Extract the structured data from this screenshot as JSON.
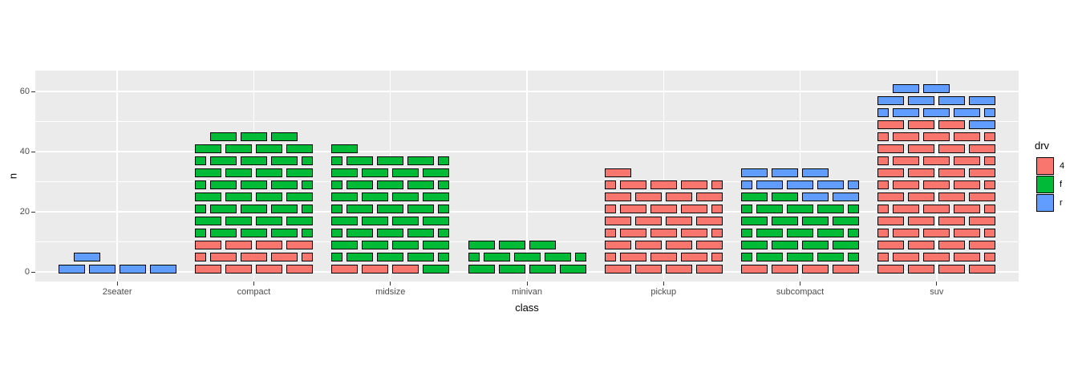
{
  "figure": {
    "background": "#FFFFFF",
    "panel_background": "#EBEBEB",
    "gridline_color": "#FFFFFF",
    "tick_color": "#333333",
    "tick_label_color": "#4D4D4D",
    "brick_border_color": "#000000"
  },
  "chart_data": {
    "type": "bar",
    "subtype": "stacked-brick-waffle",
    "title": "",
    "xlabel": "class",
    "ylabel": "n",
    "categories": [
      "2seater",
      "compact",
      "midsize",
      "minivan",
      "pickup",
      "subcompact",
      "suv"
    ],
    "series": [
      {
        "name": "4",
        "color": "#F8766D",
        "values": [
          0,
          12,
          3,
          0,
          33,
          4,
          51
        ]
      },
      {
        "name": "f",
        "color": "#00BA38",
        "values": [
          0,
          35,
          38,
          11,
          0,
          22,
          0
        ]
      },
      {
        "name": "r",
        "color": "#619CFF",
        "values": [
          5,
          0,
          0,
          0,
          0,
          9,
          11
        ]
      }
    ],
    "totals": [
      5,
      47,
      41,
      11,
      33,
      35,
      62
    ],
    "bricks_per_row": 4,
    "stack_order_bottom_to_top": [
      "4",
      "f",
      "r"
    ],
    "y_axis": {
      "ticks": [
        0,
        20,
        40,
        60
      ],
      "minor_ticks": [
        10,
        30,
        50
      ],
      "limits": [
        -3.2,
        66.9
      ]
    },
    "grid": true,
    "legend": {
      "title": "drv",
      "position": "right"
    }
  }
}
